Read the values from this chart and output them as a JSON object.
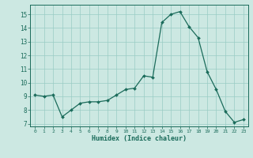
{
  "x": [
    0,
    1,
    2,
    3,
    4,
    5,
    6,
    7,
    8,
    9,
    10,
    11,
    12,
    13,
    14,
    15,
    16,
    17,
    18,
    19,
    20,
    21,
    22,
    23
  ],
  "y": [
    9.1,
    9.0,
    9.1,
    7.5,
    8.0,
    8.5,
    8.6,
    8.6,
    8.7,
    9.1,
    9.5,
    9.6,
    10.5,
    10.4,
    14.4,
    15.0,
    15.2,
    14.1,
    13.3,
    10.8,
    9.5,
    7.9,
    7.1,
    7.3
  ],
  "line_color": "#1a6b5a",
  "bg_color": "#cce8e2",
  "grid_color": "#99ccc4",
  "xlabel": "Humidex (Indice chaleur)",
  "ylim": [
    6.8,
    15.7
  ],
  "xlim": [
    -0.5,
    23.5
  ],
  "yticks": [
    7,
    8,
    9,
    10,
    11,
    12,
    13,
    14,
    15
  ],
  "xticks": [
    0,
    1,
    2,
    3,
    4,
    5,
    6,
    7,
    8,
    9,
    10,
    11,
    12,
    13,
    14,
    15,
    16,
    17,
    18,
    19,
    20,
    21,
    22,
    23
  ],
  "marker_size": 2.0,
  "linewidth": 0.9
}
